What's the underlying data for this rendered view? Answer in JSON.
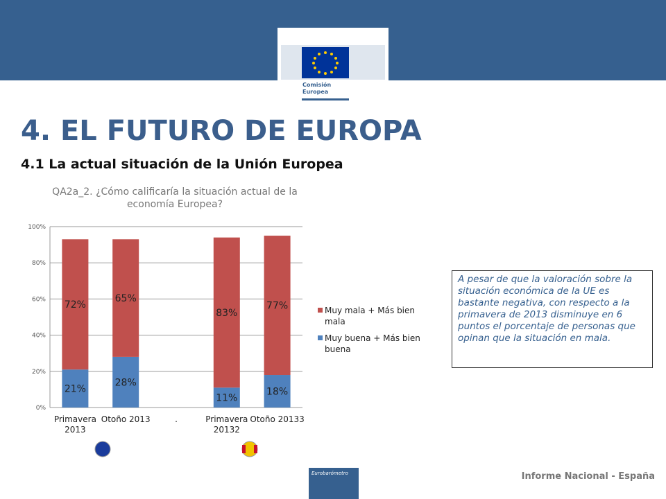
{
  "header": {
    "logo_lines": [
      "Comisión",
      "Europea"
    ]
  },
  "title": "4. EL FUTURO DE EUROPA",
  "subtitle": "4.1 La actual situación de la Unión Europea",
  "chart_data": {
    "type": "stacked_bar",
    "title": "QA2a_2. ¿Cómo calificaría la situación actual de la economía Europea?",
    "categories": [
      "Primavera 2013",
      "Otoño 2013",
      ".",
      "Primavera 20132",
      "Otoño 20133"
    ],
    "series": [
      {
        "name": "Muy buena + Más bien buena",
        "color": "#4f81bd",
        "values": [
          21,
          28,
          null,
          11,
          18
        ],
        "value_labels": [
          "21%",
          "28%",
          null,
          "11%",
          "18%"
        ]
      },
      {
        "name": "Muy mala + Más bien mala",
        "color": "#c0504d",
        "values": [
          72,
          65,
          null,
          83,
          77
        ],
        "value_labels": [
          "72%",
          "65%",
          null,
          "83%",
          "77%"
        ]
      }
    ],
    "ylim": [
      0,
      100
    ],
    "yticks": [
      {
        "value": 0,
        "label": "0%"
      },
      {
        "value": 20,
        "label": "20%"
      },
      {
        "value": 40,
        "label": "40%"
      },
      {
        "value": 60,
        "label": "60%"
      },
      {
        "value": 80,
        "label": "80%"
      },
      {
        "value": 100,
        "label": "100%"
      }
    ],
    "grid": true
  },
  "note": "A pesar de que la valoración sobre la situación económica de la UE es bastante negativa, con respecto a la primavera de 2013 disminuye en 6 puntos el porcentaje de personas que opinan que la situación en mala.",
  "footer": "Informe Nacional - España",
  "footer_logo": "Eurobarómetro"
}
